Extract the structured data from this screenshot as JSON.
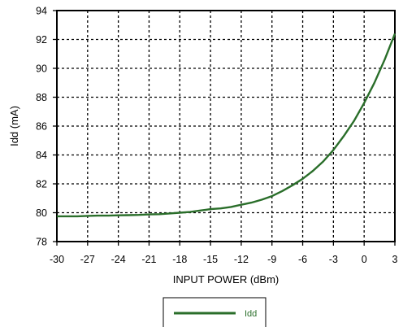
{
  "chart_data": {
    "type": "line",
    "title": "",
    "xlabel": "INPUT POWER (dBm)",
    "ylabel": "Idd (mA)",
    "xlim": [
      -30,
      3
    ],
    "ylim": [
      78,
      94
    ],
    "x_ticks": [
      "-30",
      "-27",
      "-24",
      "-21",
      "-18",
      "-15",
      "-12",
      "-9",
      "-6",
      "-3",
      "0",
      "3"
    ],
    "y_ticks": [
      "78",
      "80",
      "82",
      "84",
      "86",
      "88",
      "90",
      "92",
      "94"
    ],
    "grid": "dashed",
    "legend_position": "bottom-center",
    "series": [
      {
        "name": "Idd",
        "color": "#2a6e2a",
        "x": [
          -30,
          -28,
          -27,
          -26,
          -25,
          -24,
          -23,
          -22,
          -21,
          -20,
          -19,
          -18,
          -17,
          -16,
          -15,
          -14,
          -13,
          -12,
          -11,
          -10,
          -9,
          -8,
          -7,
          -6,
          -5,
          -4,
          -3,
          -2,
          -1,
          0,
          1,
          2,
          3
        ],
        "y": [
          79.75,
          79.75,
          79.78,
          79.8,
          79.8,
          79.82,
          79.83,
          79.85,
          79.88,
          79.9,
          79.95,
          80.0,
          80.05,
          80.15,
          80.25,
          80.3,
          80.4,
          80.55,
          80.7,
          80.9,
          81.15,
          81.5,
          81.9,
          82.35,
          82.9,
          83.55,
          84.35,
          85.3,
          86.35,
          87.6,
          89.0,
          90.6,
          92.4
        ]
      }
    ]
  }
}
